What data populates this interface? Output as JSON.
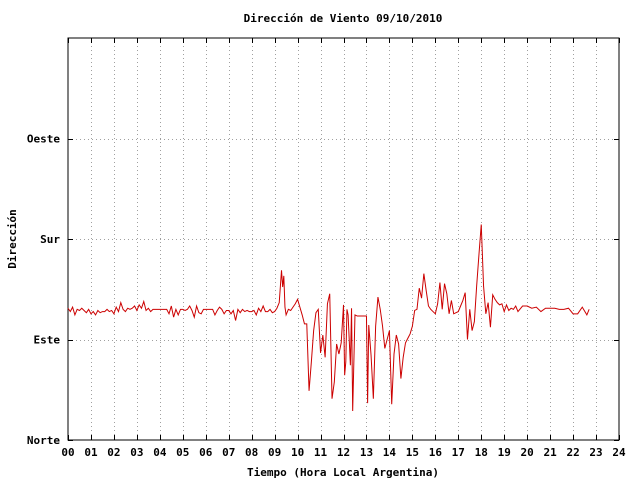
{
  "chart_data": {
    "type": "line",
    "title": "Dirección de Viento 09/10/2010",
    "xlabel": "Tiempo (Hora Local Argentina)",
    "ylabel": "Dirección",
    "xlim": [
      0,
      24
    ],
    "ylim": [
      0,
      360
    ],
    "x_tick_labels": [
      "00",
      "01",
      "02",
      "03",
      "04",
      "05",
      "06",
      "07",
      "08",
      "09",
      "10",
      "11",
      "12",
      "13",
      "14",
      "15",
      "16",
      "17",
      "18",
      "19",
      "20",
      "21",
      "22",
      "23",
      "24"
    ],
    "y_ticks": [
      {
        "value": 0,
        "label": "Norte"
      },
      {
        "value": 90,
        "label": "Este"
      },
      {
        "value": 180,
        "label": "Sur"
      },
      {
        "value": 270,
        "label": "Oeste"
      }
    ],
    "grid": true,
    "colors": {
      "series": "#cc0000",
      "grid": "#a0a0a0",
      "axes": "#000000"
    },
    "series": [
      {
        "values": [
          [
            0.0,
            118
          ],
          [
            0.1,
            115
          ],
          [
            0.2,
            119
          ],
          [
            0.3,
            112
          ],
          [
            0.4,
            117
          ],
          [
            0.5,
            116
          ],
          [
            0.6,
            118
          ],
          [
            0.7,
            116
          ],
          [
            0.8,
            114
          ],
          [
            0.9,
            117
          ],
          [
            1.0,
            113
          ],
          [
            1.1,
            115
          ],
          [
            1.2,
            112
          ],
          [
            1.3,
            116
          ],
          [
            1.4,
            114
          ],
          [
            1.5,
            115
          ],
          [
            1.6,
            115
          ],
          [
            1.7,
            117
          ],
          [
            1.8,
            115
          ],
          [
            1.9,
            116
          ],
          [
            2.0,
            113
          ],
          [
            2.1,
            119
          ],
          [
            2.2,
            115
          ],
          [
            2.3,
            123
          ],
          [
            2.4,
            117
          ],
          [
            2.5,
            115
          ],
          [
            2.6,
            118
          ],
          [
            2.7,
            117
          ],
          [
            2.8,
            118
          ],
          [
            2.9,
            120
          ],
          [
            3.0,
            116
          ],
          [
            3.1,
            121
          ],
          [
            3.2,
            118
          ],
          [
            3.3,
            124
          ],
          [
            3.4,
            116
          ],
          [
            3.5,
            118
          ],
          [
            3.6,
            115
          ],
          [
            3.7,
            117
          ],
          [
            3.8,
            117
          ],
          [
            3.9,
            117
          ],
          [
            4.0,
            117
          ],
          [
            4.1,
            117
          ],
          [
            4.2,
            117
          ],
          [
            4.3,
            117
          ],
          [
            4.4,
            113
          ],
          [
            4.5,
            120
          ],
          [
            4.6,
            110
          ],
          [
            4.7,
            117
          ],
          [
            4.8,
            112
          ],
          [
            4.9,
            117
          ],
          [
            5.0,
            117
          ],
          [
            5.1,
            116
          ],
          [
            5.2,
            117
          ],
          [
            5.3,
            120
          ],
          [
            5.4,
            116
          ],
          [
            5.5,
            110
          ],
          [
            5.6,
            120
          ],
          [
            5.7,
            114
          ],
          [
            5.8,
            113
          ],
          [
            5.9,
            117
          ],
          [
            6.0,
            117
          ],
          [
            6.1,
            117
          ],
          [
            6.2,
            117
          ],
          [
            6.3,
            117
          ],
          [
            6.4,
            112
          ],
          [
            6.5,
            116
          ],
          [
            6.6,
            119
          ],
          [
            6.7,
            117
          ],
          [
            6.8,
            113
          ],
          [
            6.9,
            116
          ],
          [
            7.0,
            116
          ],
          [
            7.1,
            113
          ],
          [
            7.2,
            116
          ],
          [
            7.3,
            107
          ],
          [
            7.4,
            117
          ],
          [
            7.5,
            114
          ],
          [
            7.6,
            117
          ],
          [
            7.7,
            115
          ],
          [
            7.8,
            116
          ],
          [
            7.9,
            115
          ],
          [
            8.0,
            115
          ],
          [
            8.1,
            116
          ],
          [
            8.2,
            112
          ],
          [
            8.3,
            118
          ],
          [
            8.4,
            115
          ],
          [
            8.5,
            120
          ],
          [
            8.6,
            115
          ],
          [
            8.7,
            115
          ],
          [
            8.8,
            117
          ],
          [
            8.9,
            114
          ],
          [
            9.0,
            115
          ],
          [
            9.1,
            118
          ],
          [
            9.2,
            123
          ],
          [
            9.3,
            152
          ],
          [
            9.35,
            137
          ],
          [
            9.4,
            147
          ],
          [
            9.45,
            119
          ],
          [
            9.5,
            112
          ],
          [
            9.6,
            117
          ],
          [
            9.7,
            116
          ],
          [
            9.8,
            119
          ],
          [
            9.9,
            122
          ],
          [
            10.0,
            126
          ],
          [
            10.1,
            119
          ],
          [
            10.2,
            112
          ],
          [
            10.3,
            104
          ],
          [
            10.4,
            104
          ],
          [
            10.5,
            44
          ],
          [
            10.6,
            70
          ],
          [
            10.7,
            98
          ],
          [
            10.8,
            114
          ],
          [
            10.9,
            117
          ],
          [
            11.0,
            78
          ],
          [
            11.1,
            94
          ],
          [
            11.2,
            74
          ],
          [
            11.3,
            122
          ],
          [
            11.4,
            131
          ],
          [
            11.5,
            37
          ],
          [
            11.6,
            52
          ],
          [
            11.7,
            86
          ],
          [
            11.8,
            77
          ],
          [
            11.9,
            87
          ],
          [
            12.0,
            121
          ],
          [
            12.05,
            58
          ],
          [
            12.1,
            70
          ],
          [
            12.15,
            117
          ],
          [
            12.2,
            112
          ],
          [
            12.3,
            67
          ],
          [
            12.35,
            118
          ],
          [
            12.4,
            26
          ],
          [
            12.5,
            112
          ],
          [
            12.6,
            111
          ],
          [
            12.7,
            111
          ],
          [
            12.8,
            111
          ],
          [
            12.9,
            111
          ],
          [
            13.0,
            111
          ],
          [
            13.05,
            33
          ],
          [
            13.1,
            103
          ],
          [
            13.2,
            76
          ],
          [
            13.3,
            37
          ],
          [
            13.4,
            102
          ],
          [
            13.5,
            128
          ],
          [
            13.6,
            117
          ],
          [
            13.7,
            102
          ],
          [
            13.8,
            82
          ],
          [
            14.0,
            98
          ],
          [
            14.1,
            32
          ],
          [
            14.2,
            77
          ],
          [
            14.3,
            94
          ],
          [
            14.4,
            86
          ],
          [
            14.5,
            55
          ],
          [
            14.6,
            74
          ],
          [
            14.7,
            87
          ],
          [
            14.8,
            91
          ],
          [
            14.9,
            95
          ],
          [
            15.0,
            102
          ],
          [
            15.1,
            116
          ],
          [
            15.2,
            117
          ],
          [
            15.3,
            136
          ],
          [
            15.4,
            127
          ],
          [
            15.5,
            149
          ],
          [
            15.6,
            134
          ],
          [
            15.7,
            120
          ],
          [
            15.8,
            117
          ],
          [
            16.0,
            113
          ],
          [
            16.1,
            122
          ],
          [
            16.2,
            141
          ],
          [
            16.3,
            117
          ],
          [
            16.4,
            140
          ],
          [
            16.5,
            131
          ],
          [
            16.6,
            113
          ],
          [
            16.7,
            125
          ],
          [
            16.8,
            113
          ],
          [
            17.0,
            115
          ],
          [
            17.1,
            120
          ],
          [
            17.2,
            125
          ],
          [
            17.3,
            132
          ],
          [
            17.4,
            90
          ],
          [
            17.5,
            117
          ],
          [
            17.6,
            98
          ],
          [
            17.7,
            106
          ],
          [
            17.8,
            138
          ],
          [
            17.9,
            166
          ],
          [
            18.0,
            193
          ],
          [
            18.1,
            138
          ],
          [
            18.2,
            113
          ],
          [
            18.3,
            123
          ],
          [
            18.4,
            101
          ],
          [
            18.5,
            130
          ],
          [
            18.6,
            126
          ],
          [
            18.7,
            123
          ],
          [
            18.8,
            121
          ],
          [
            18.9,
            122
          ],
          [
            19.0,
            115
          ],
          [
            19.1,
            121
          ],
          [
            19.2,
            116
          ],
          [
            19.3,
            118
          ],
          [
            19.4,
            117
          ],
          [
            19.5,
            120
          ],
          [
            19.6,
            115
          ],
          [
            19.8,
            120
          ],
          [
            20.0,
            120
          ],
          [
            20.2,
            118
          ],
          [
            20.4,
            119
          ],
          [
            20.6,
            115
          ],
          [
            20.8,
            118
          ],
          [
            21.0,
            118
          ],
          [
            21.2,
            118
          ],
          [
            21.4,
            117
          ],
          [
            21.6,
            117
          ],
          [
            21.8,
            118
          ],
          [
            22.0,
            113
          ],
          [
            22.2,
            113
          ],
          [
            22.4,
            119
          ],
          [
            22.6,
            112
          ],
          [
            22.7,
            117
          ]
        ]
      }
    ]
  }
}
